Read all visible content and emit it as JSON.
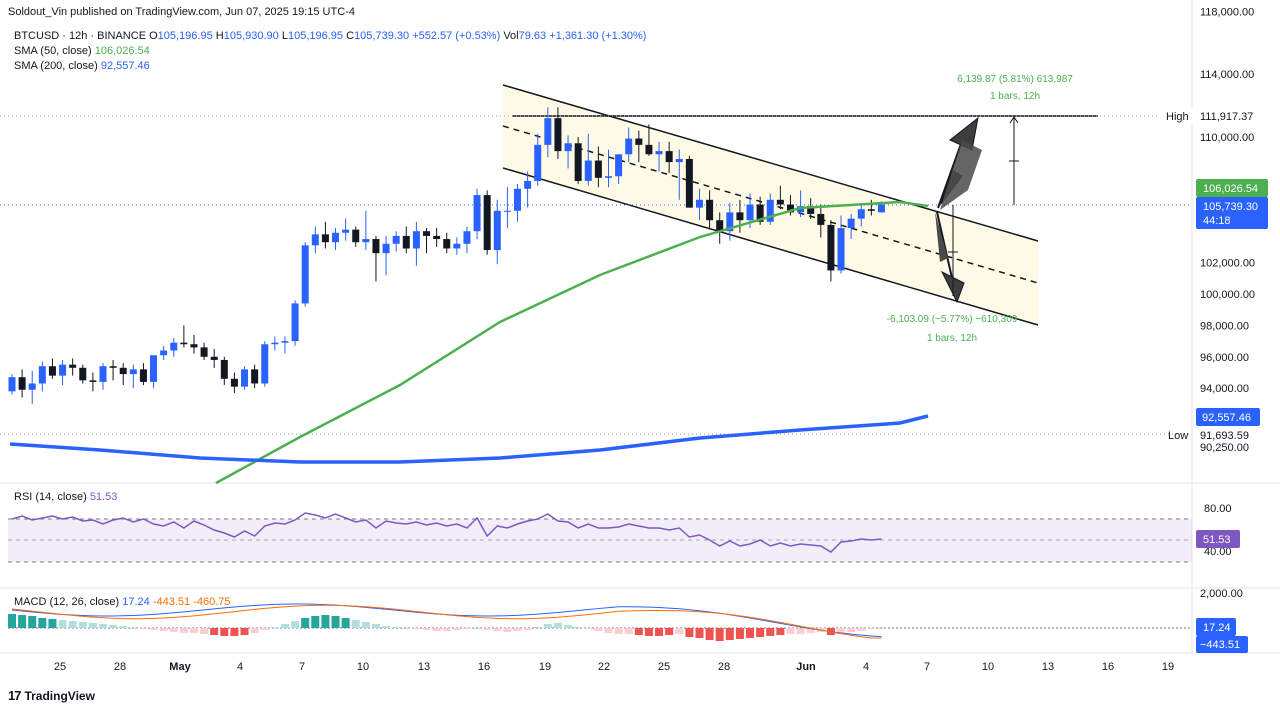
{
  "header": {
    "publisher": "Soldout_Vin published on TradingView.com, Jun 07, 2025 19:15 UTC-4",
    "symbol": "BTCUSD · 12h · BINANCE",
    "open_label": "O",
    "open": "105,196.95",
    "high_label": "H",
    "high": "105,930.90",
    "low_label": "L",
    "low": "105,196.95",
    "close_label": "C",
    "close": "105,739.30",
    "change": "+552.57 (+0.53%)",
    "vol_label": "Vol",
    "vol": "79.63",
    "vol_change": "+1,361.30 (+1.30%)",
    "sma50_label": "SMA (50, close)",
    "sma50_value": "106,026.54",
    "sma200_label": "SMA (200, close)",
    "sma200_value": "92,557.46"
  },
  "rsi": {
    "label": "RSI (14, close)",
    "value": "51.53",
    "axis": [
      "80.00",
      "40.00"
    ],
    "badge": "51.53"
  },
  "macd": {
    "label": "MACD (12, 26, close)",
    "v1": "17.24",
    "v2": "-443.51",
    "v3": "-460.75",
    "axis": "2,000.00",
    "badge1": "17.24",
    "badge2": "−443.51"
  },
  "footer": {
    "brand": "TradingView",
    "logo": "17"
  },
  "chart_data": {
    "type": "candlestick",
    "interval": "12h",
    "price_axis": [
      "118,000.00",
      "114,000.00",
      "110,000.00",
      "102,000.00",
      "100,000.00",
      "98,000.00",
      "96,000.00",
      "94,000.00",
      "90,250.00"
    ],
    "price_ticks": [
      118000,
      114000,
      110000,
      102000,
      100000,
      98000,
      96000,
      94000,
      90250
    ],
    "time_axis": [
      "25",
      "28",
      "May",
      "4",
      "7",
      "10",
      "13",
      "16",
      "19",
      "22",
      "25",
      "28",
      "Jun",
      "4",
      "7",
      "10",
      "13",
      "16",
      "19"
    ],
    "labels": {
      "high_label": "High",
      "high_value": "111,917.37",
      "low_label": "Low",
      "low_value": "91,693.59",
      "sma50_badge": "106,026.54",
      "price_badge": "105,739.30",
      "countdown": "44:18",
      "sma200_badge": "92,557.46"
    },
    "measure_up": {
      "text": "6,139.87 (5.81%) 613,987",
      "bars": "1 bars, 12h"
    },
    "measure_down": {
      "text": "-6,103.09 (−5.77%) −610,309",
      "bars": "1 bars, 12h"
    },
    "candles_ohlc": [
      [
        93800,
        94900,
        93600,
        94700
      ],
      [
        94700,
        95200,
        93400,
        93900
      ],
      [
        93900,
        95100,
        93000,
        94300
      ],
      [
        94300,
        95700,
        93800,
        95400
      ],
      [
        95400,
        95900,
        94600,
        94800
      ],
      [
        94800,
        95800,
        94200,
        95500
      ],
      [
        95500,
        95900,
        94800,
        95300
      ],
      [
        95300,
        95500,
        94300,
        94500
      ],
      [
        94500,
        95000,
        93800,
        94400
      ],
      [
        94400,
        95600,
        93900,
        95400
      ],
      [
        95400,
        95800,
        94500,
        95300
      ],
      [
        95300,
        95600,
        94200,
        94900
      ],
      [
        94900,
        95500,
        94000,
        95200
      ],
      [
        95200,
        95600,
        94200,
        94400
      ],
      [
        94400,
        96000,
        94000,
        96100
      ],
      [
        96100,
        96700,
        95800,
        96400
      ],
      [
        96400,
        97200,
        96000,
        96900
      ],
      [
        96900,
        98000,
        96600,
        96800
      ],
      [
        96800,
        97400,
        96200,
        96600
      ],
      [
        96600,
        96900,
        95800,
        96000
      ],
      [
        96000,
        96500,
        95300,
        95800
      ],
      [
        95800,
        96000,
        94200,
        94600
      ],
      [
        94600,
        95000,
        93700,
        94100
      ],
      [
        94100,
        95400,
        93900,
        95200
      ],
      [
        95200,
        95500,
        94000,
        94300
      ],
      [
        94300,
        97000,
        94100,
        96800
      ],
      [
        96800,
        97300,
        96400,
        96900
      ],
      [
        96900,
        97300,
        96200,
        97000
      ],
      [
        97000,
        99600,
        96700,
        99400
      ],
      [
        99400,
        103300,
        99200,
        103100
      ],
      [
        103100,
        104300,
        102600,
        103800
      ],
      [
        103800,
        104600,
        102900,
        103300
      ],
      [
        103300,
        104200,
        102800,
        103900
      ],
      [
        103900,
        104800,
        103400,
        104100
      ],
      [
        104100,
        104300,
        103000,
        103300
      ],
      [
        103300,
        105300,
        102800,
        103500
      ],
      [
        103500,
        103700,
        100800,
        102600
      ],
      [
        102600,
        103700,
        101200,
        103200
      ],
      [
        103200,
        104000,
        102700,
        103700
      ],
      [
        103700,
        104300,
        102600,
        102900
      ],
      [
        102900,
        104600,
        101800,
        104000
      ],
      [
        104000,
        104200,
        102600,
        103700
      ],
      [
        103700,
        104200,
        103000,
        103500
      ],
      [
        103500,
        103900,
        102600,
        102900
      ],
      [
        102900,
        103600,
        102500,
        103200
      ],
      [
        103200,
        104300,
        102600,
        104000
      ],
      [
        104000,
        106700,
        103500,
        106300
      ],
      [
        106300,
        106600,
        102500,
        102800
      ],
      [
        102800,
        106000,
        101900,
        105300
      ],
      [
        105300,
        106800,
        104200,
        105300
      ],
      [
        105300,
        107000,
        104600,
        106700
      ],
      [
        106700,
        107800,
        105500,
        107200
      ],
      [
        107200,
        110200,
        106900,
        109500
      ],
      [
        109500,
        111900,
        108700,
        111200
      ],
      [
        111200,
        111900,
        108600,
        109100
      ],
      [
        109100,
        110100,
        108000,
        109600
      ],
      [
        109600,
        110000,
        107000,
        107200
      ],
      [
        107200,
        110200,
        106900,
        108500
      ],
      [
        108500,
        109400,
        106800,
        107400
      ],
      [
        107400,
        109200,
        106800,
        107500
      ],
      [
        107500,
        108500,
        107000,
        108900
      ],
      [
        108900,
        110600,
        108400,
        109900
      ],
      [
        109900,
        110400,
        108400,
        109500
      ],
      [
        109500,
        110800,
        108800,
        108900
      ],
      [
        108900,
        109700,
        107800,
        109100
      ],
      [
        109100,
        109700,
        107700,
        108400
      ],
      [
        108400,
        109200,
        106000,
        108600
      ],
      [
        108600,
        108800,
        105700,
        105500
      ],
      [
        105500,
        106700,
        104700,
        106000
      ],
      [
        106000,
        106600,
        104100,
        104700
      ],
      [
        104700,
        105200,
        103200,
        104000
      ],
      [
        104000,
        105800,
        103400,
        105200
      ],
      [
        105200,
        106000,
        103900,
        104700
      ],
      [
        104700,
        106400,
        104200,
        105700
      ],
      [
        105700,
        106200,
        104400,
        104600
      ],
      [
        104600,
        106400,
        104400,
        106000
      ],
      [
        106000,
        106900,
        105400,
        105700
      ],
      [
        105700,
        106300,
        105000,
        105200
      ],
      [
        105200,
        106600,
        104900,
        105600
      ],
      [
        105600,
        106100,
        104800,
        105100
      ],
      [
        105100,
        105700,
        103600,
        104400
      ],
      [
        104400,
        104700,
        100800,
        101500
      ],
      [
        101500,
        105000,
        101300,
        104200
      ],
      [
        104200,
        105100,
        103500,
        104800
      ],
      [
        104800,
        105700,
        104300,
        105400
      ],
      [
        105400,
        106000,
        105000,
        105300
      ],
      [
        105200,
        105900,
        105200,
        105700
      ]
    ],
    "sma50_approx": [
      [
        216,
        483
      ],
      [
        300,
        437
      ],
      [
        400,
        385
      ],
      [
        500,
        322
      ],
      [
        600,
        275
      ],
      [
        700,
        237
      ],
      [
        800,
        208
      ],
      [
        900,
        202
      ],
      [
        928,
        206
      ]
    ],
    "sma200_approx": [
      [
        10,
        444
      ],
      [
        100,
        450
      ],
      [
        200,
        458
      ],
      [
        300,
        462
      ],
      [
        400,
        462
      ],
      [
        500,
        458
      ],
      [
        600,
        450
      ],
      [
        700,
        438
      ],
      [
        800,
        430
      ],
      [
        900,
        423
      ],
      [
        928,
        416
      ]
    ],
    "rsi_levels": [
      70,
      50,
      30
    ]
  }
}
